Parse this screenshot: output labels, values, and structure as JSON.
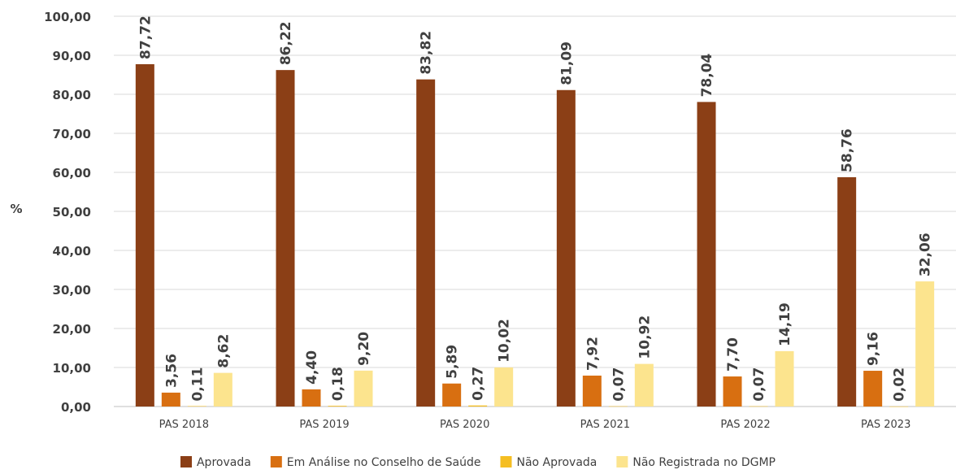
{
  "chart_data": {
    "type": "bar",
    "title": "",
    "xlabel": "",
    "ylabel": "%",
    "ylim": [
      0,
      100
    ],
    "yticks": [
      "0,00",
      "10,00",
      "20,00",
      "30,00",
      "40,00",
      "50,00",
      "60,00",
      "70,00",
      "80,00",
      "90,00",
      "100,00"
    ],
    "grid": true,
    "legend_position": "bottom",
    "categories": [
      "PAS 2018",
      "PAS 2019",
      "PAS 2020",
      "PAS 2021",
      "PAS 2022",
      "PAS 2023"
    ],
    "series": [
      {
        "name": "Aprovada",
        "color": "#8B3F16",
        "values": [
          87.72,
          86.22,
          83.82,
          81.09,
          78.04,
          58.76
        ],
        "labels": [
          "87,72",
          "86,22",
          "83,82",
          "81,09",
          "78,04",
          "58,76"
        ]
      },
      {
        "name": "Em Análise no Conselho de Saúde",
        "color": "#D86F11",
        "values": [
          3.56,
          4.4,
          5.89,
          7.92,
          7.7,
          9.16
        ],
        "labels": [
          "3,56",
          "4,40",
          "5,89",
          "7,92",
          "7,70",
          "9,16"
        ]
      },
      {
        "name": "Não Aprovada",
        "color": "#F5BE22",
        "values": [
          0.11,
          0.18,
          0.27,
          0.07,
          0.07,
          0.02
        ],
        "labels": [
          "0,11",
          "0,18",
          "0,27",
          "0,07",
          "0,07",
          "0,02"
        ]
      },
      {
        "name": "Não Registrada no DGMP",
        "color": "#FCE48E",
        "values": [
          8.62,
          9.2,
          10.02,
          10.92,
          14.19,
          32.06
        ],
        "labels": [
          "8,62",
          "9,20",
          "10,02",
          "10,92",
          "14,19",
          "32,06"
        ]
      }
    ]
  }
}
